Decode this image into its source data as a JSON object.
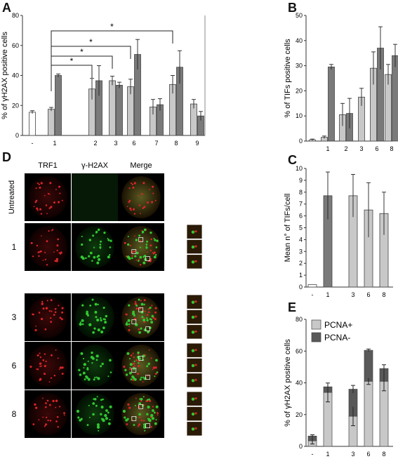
{
  "panels": {
    "A": {
      "letter": "A"
    },
    "B": {
      "letter": "B"
    },
    "C": {
      "letter": "C"
    },
    "D": {
      "letter": "D"
    },
    "E": {
      "letter": "E"
    }
  },
  "chart_data": [
    {
      "id": "A",
      "type": "bar",
      "ylabel": "% of γH2AX positive cells",
      "ylim": [
        0,
        80
      ],
      "yticks": [
        0,
        20,
        40,
        60,
        80
      ],
      "groups": [
        {
          "label": "-",
          "bars": [
            {
              "v": 15.5,
              "e": 1.0,
              "shade": "white"
            }
          ]
        },
        {
          "label": "1",
          "bars": [
            {
              "v": 17.5,
              "e": 1.2,
              "shade": "light"
            },
            {
              "v": 40,
              "e": 1.0,
              "shade": "dark"
            }
          ]
        },
        {
          "label": "2",
          "bars": [
            {
              "v": 31,
              "e": 7,
              "shade": "light"
            },
            {
              "v": 36.5,
              "e": 10,
              "shade": "dark"
            }
          ]
        },
        {
          "label": "3",
          "bars": [
            {
              "v": 36.5,
              "e": 3,
              "shade": "light"
            },
            {
              "v": 33.5,
              "e": 2,
              "shade": "dark"
            }
          ]
        },
        {
          "label": "6",
          "bars": [
            {
              "v": 32.5,
              "e": 5,
              "shade": "light"
            },
            {
              "v": 54,
              "e": 10,
              "shade": "dark"
            }
          ]
        },
        {
          "label": "7",
          "bars": [
            {
              "v": 19,
              "e": 5,
              "shade": "light"
            },
            {
              "v": 20.5,
              "e": 4,
              "shade": "dark"
            }
          ]
        },
        {
          "label": "8",
          "bars": [
            {
              "v": 34,
              "e": 6,
              "shade": "light"
            },
            {
              "v": 45.5,
              "e": 11,
              "shade": "dark"
            }
          ]
        },
        {
          "label": "9",
          "bars": [
            {
              "v": 21,
              "e": 3,
              "shade": "light"
            },
            {
              "v": 13,
              "e": 3,
              "shade": "dark"
            }
          ]
        }
      ],
      "significance": [
        {
          "to": "2",
          "label": "*"
        },
        {
          "to": "3",
          "label": "*"
        },
        {
          "to": "6",
          "label": "*"
        },
        {
          "to": "8",
          "label": "*"
        }
      ]
    },
    {
      "id": "B",
      "type": "bar",
      "ylabel": "% of TIFs positive cells",
      "ylim": [
        0,
        50
      ],
      "yticks": [
        0,
        10,
        20,
        30,
        40,
        50
      ],
      "groups": [
        {
          "label": "",
          "bars": [
            {
              "v": 0.5,
              "e": 0.3,
              "shade": "white"
            }
          ]
        },
        {
          "label": "1",
          "bars": [
            {
              "v": 1.5,
              "e": 0.5,
              "shade": "light"
            },
            {
              "v": 29.5,
              "e": 1.0,
              "shade": "dark"
            }
          ]
        },
        {
          "label": "2",
          "bars": [
            {
              "v": 10.5,
              "e": 4.5,
              "shade": "light"
            },
            {
              "v": 11,
              "e": 6,
              "shade": "dark"
            }
          ]
        },
        {
          "label": "3",
          "bars": [
            {
              "v": 17.5,
              "e": 3.5,
              "shade": "light"
            }
          ]
        },
        {
          "label": "6",
          "bars": [
            {
              "v": 29,
              "e": 6.5,
              "shade": "light"
            },
            {
              "v": 37,
              "e": 8.5,
              "shade": "dark"
            }
          ]
        },
        {
          "label": "8",
          "bars": [
            {
              "v": 26.5,
              "e": 4,
              "shade": "light"
            },
            {
              "v": 34,
              "e": 4.5,
              "shade": "dark"
            }
          ]
        }
      ]
    },
    {
      "id": "C",
      "type": "bar",
      "ylabel": "Mean n° of TIFs/cell",
      "ylim": [
        0,
        10
      ],
      "yticks": [
        0,
        1,
        2,
        3,
        4,
        5,
        6,
        7,
        8,
        9,
        10
      ],
      "groups": [
        {
          "label": "-",
          "bars": [
            {
              "v": 0.2,
              "e": 0,
              "shade": "white"
            }
          ]
        },
        {
          "label": "1",
          "bars": [
            {
              "v": 7.7,
              "e": 2.0,
              "shade": "dark"
            }
          ]
        },
        {
          "label": "3",
          "bars": [
            {
              "v": 7.7,
              "e": 1.8,
              "shade": "light"
            }
          ]
        },
        {
          "label": "6",
          "bars": [
            {
              "v": 6.5,
              "e": 2.3,
              "shade": "light"
            }
          ]
        },
        {
          "label": "8",
          "bars": [
            {
              "v": 6.2,
              "e": 1.8,
              "shade": "light"
            }
          ]
        }
      ]
    },
    {
      "id": "E",
      "type": "bar",
      "stacked": true,
      "ylabel": "% of γH2AX positive cells",
      "ylim": [
        0,
        80
      ],
      "yticks": [
        0,
        20,
        40,
        60,
        80
      ],
      "legend": [
        "PCNA+",
        "PCNA-"
      ],
      "groups": [
        {
          "label": "-",
          "pos": 3.5,
          "neg": 3,
          "e": 2
        },
        {
          "label": "1",
          "pos": 34,
          "neg": 3.5,
          "e": 6
        },
        {
          "label": "3",
          "pos": 19,
          "neg": 17,
          "e": 6
        },
        {
          "label": "6",
          "pos": 41,
          "neg": 19.5,
          "e": 2
        },
        {
          "label": "8",
          "pos": 41,
          "neg": 8,
          "e": 6
        }
      ]
    }
  ],
  "panel_d": {
    "columns": [
      "TRF1",
      "γ-H2AX",
      "Merge"
    ],
    "rows": [
      "Untreated",
      "1",
      "3",
      "6",
      "8"
    ]
  },
  "colors": {
    "white_bar": "#ffffff",
    "light_bar": "#c8c8c8",
    "dark_bar": "#7a7a7a",
    "dark_stack": "#595959",
    "red_signal": "#d8262a",
    "green_signal": "#32c832"
  }
}
